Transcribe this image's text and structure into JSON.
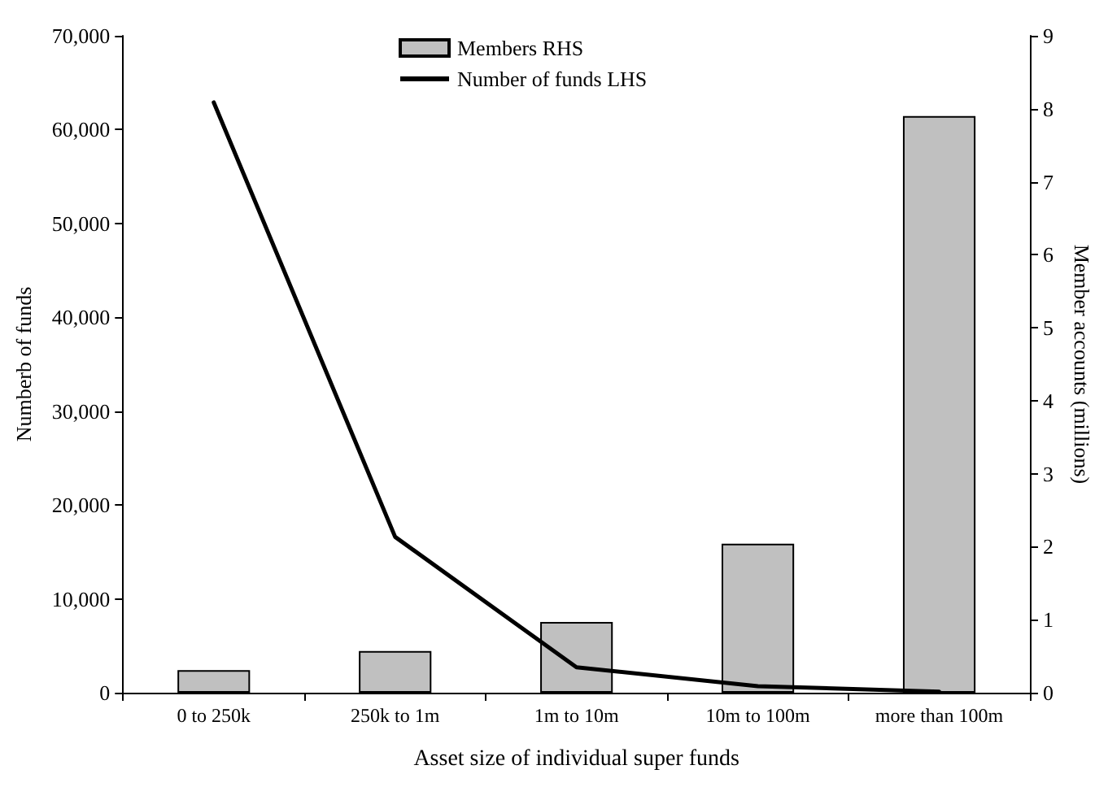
{
  "chart_data": {
    "type": "bar",
    "xlabel": "Asset size of individual super funds",
    "ylabel": "Numberb of funds",
    "y2label": "Member accounts (millions)",
    "categories": [
      "0 to 250k",
      "250k to 1m",
      "1m to 10m",
      "10m to 100m",
      "more than 100m"
    ],
    "series": [
      {
        "name": "Members RHS",
        "axis": "y2",
        "color": "#c0c0c0",
        "values": [
          0.31,
          0.57,
          0.97,
          2.04,
          7.9
        ]
      },
      {
        "name": "Number of funds LHS",
        "type": "line",
        "color": "#000000",
        "marker": "none",
        "values": [
          62900,
          16600,
          2700,
          700,
          100
        ]
      }
    ],
    "ylim": [
      0,
      70000
    ],
    "yticks": [
      {
        "value": 0,
        "label": "0"
      },
      {
        "value": 10000,
        "label": "10,000"
      },
      {
        "value": 20000,
        "label": "20,000"
      },
      {
        "value": 30000,
        "label": "30,000"
      },
      {
        "value": 40000,
        "label": "40,000"
      },
      {
        "value": 50000,
        "label": "50,000"
      },
      {
        "value": 60000,
        "label": "60,000"
      },
      {
        "value": 70000,
        "label": "70,000"
      }
    ],
    "y2lim": [
      0,
      9
    ],
    "y2ticks": [
      0,
      1,
      2,
      3,
      4,
      5,
      6,
      7,
      8,
      9
    ],
    "grid": false,
    "legend": "top"
  }
}
